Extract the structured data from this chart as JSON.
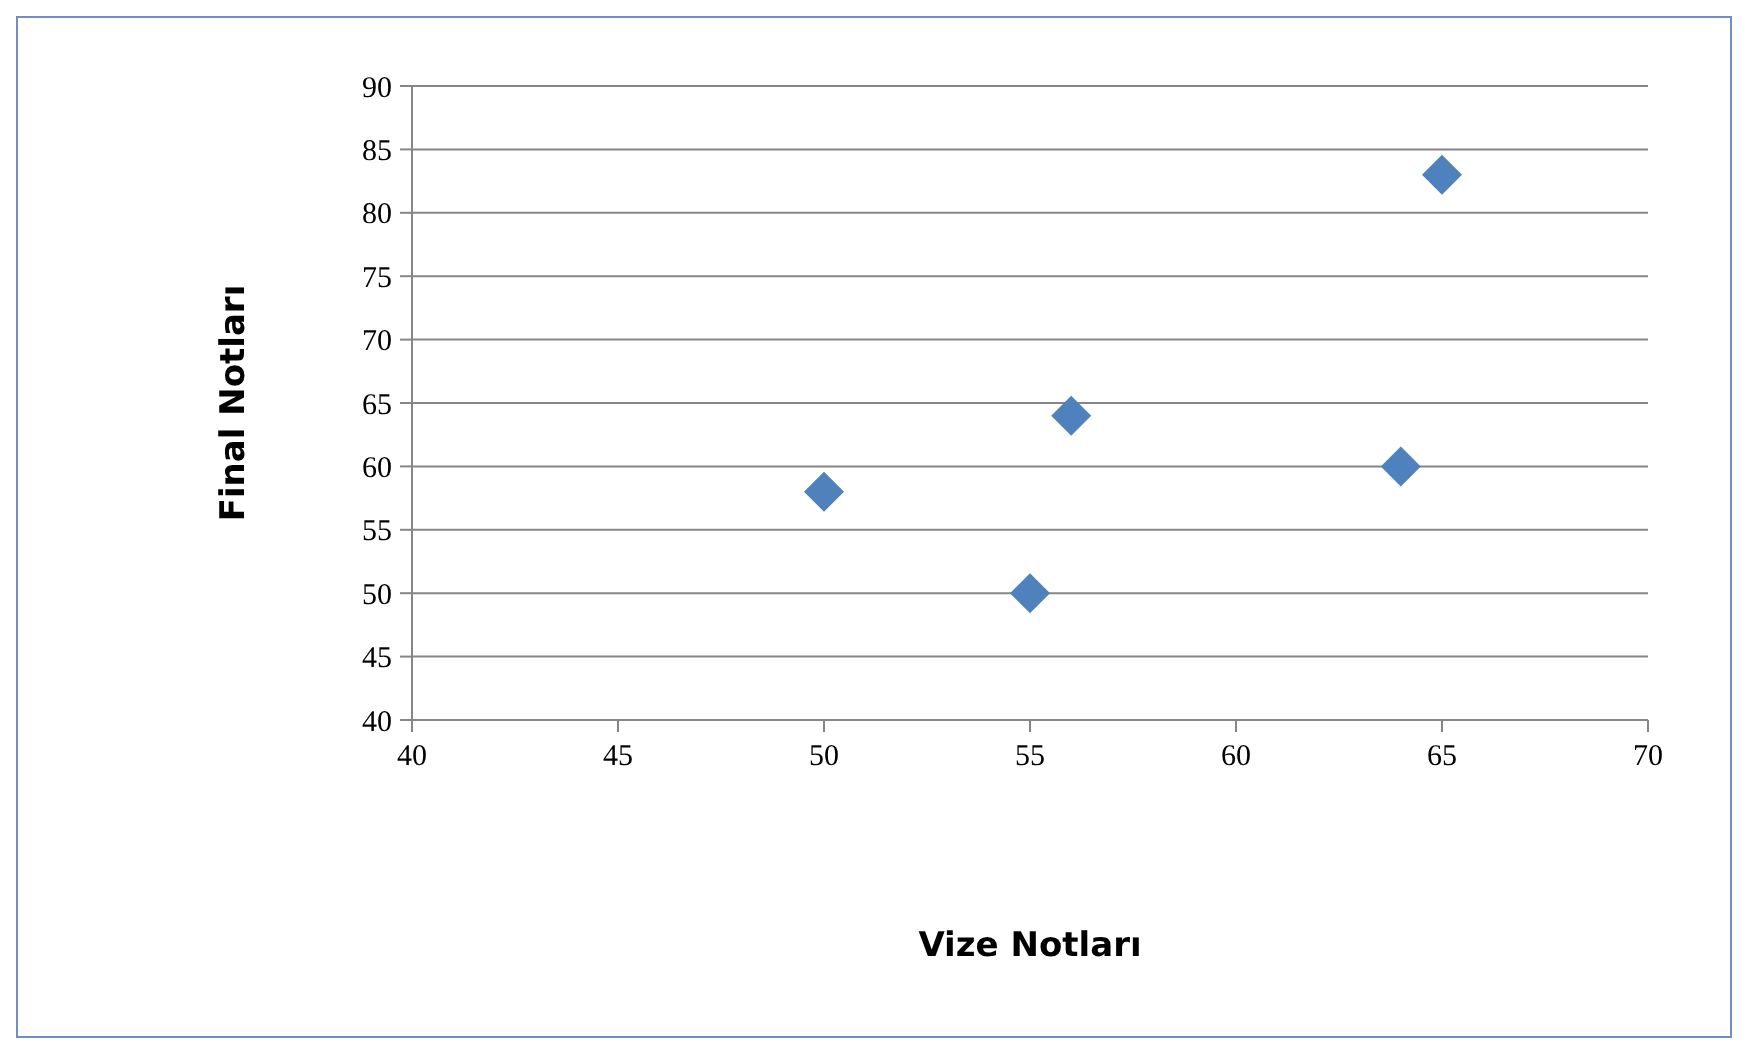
{
  "chart_data": {
    "type": "scatter",
    "xlabel": "Vize Notları",
    "ylabel": "Final Notları",
    "x": [
      50,
      55,
      56,
      64,
      65
    ],
    "values": [
      58,
      50,
      64,
      60,
      83
    ],
    "color": "#4f81bd",
    "marker": "diamond",
    "xlim": [
      40,
      70
    ],
    "xticks": [
      40,
      45,
      50,
      55,
      60,
      65,
      70
    ],
    "ylim": [
      40,
      90
    ],
    "yticks": [
      40,
      45,
      50,
      55,
      60,
      65,
      70,
      75,
      80,
      85,
      90
    ],
    "grid": "y",
    "legend": false
  }
}
